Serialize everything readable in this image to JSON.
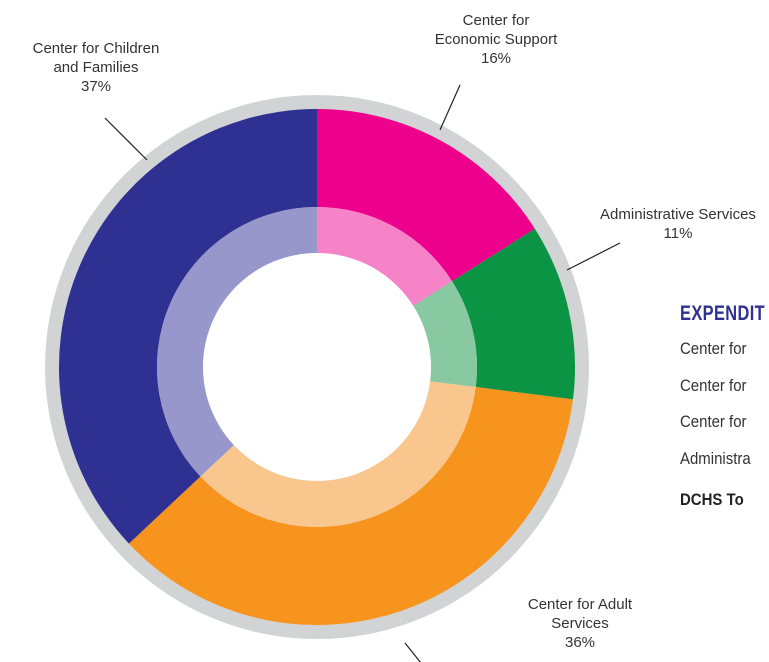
{
  "chart_data": {
    "type": "pie",
    "categories": [
      "Center for Economic Support",
      "Administrative Services",
      "Center for Adult Services",
      "Center for Children and Families"
    ],
    "values": [
      16,
      11,
      36,
      37
    ],
    "unit": "%",
    "labels": [
      {
        "lines": [
          "Center for",
          "Economic Support",
          "16%"
        ]
      },
      {
        "lines": [
          "Administrative Services",
          "11%"
        ]
      },
      {
        "lines": [
          "Center for Adult",
          "Services",
          "36%"
        ]
      },
      {
        "lines": [
          "Center for Children",
          "and Families",
          "37%"
        ]
      }
    ],
    "colors": [
      "#ec008c",
      "#0b9444",
      "#f7941d",
      "#2e3192"
    ],
    "inner_colors": [
      "#f682c8",
      "#88c9a1",
      "#f9c78d",
      "#9897cb"
    ],
    "ring_color": "#d1d3d4"
  },
  "table": {
    "title": "EXPENDIT",
    "rows": [
      "Center for",
      "Center for",
      "Center for",
      "Administra"
    ],
    "total": "DCHS To"
  }
}
